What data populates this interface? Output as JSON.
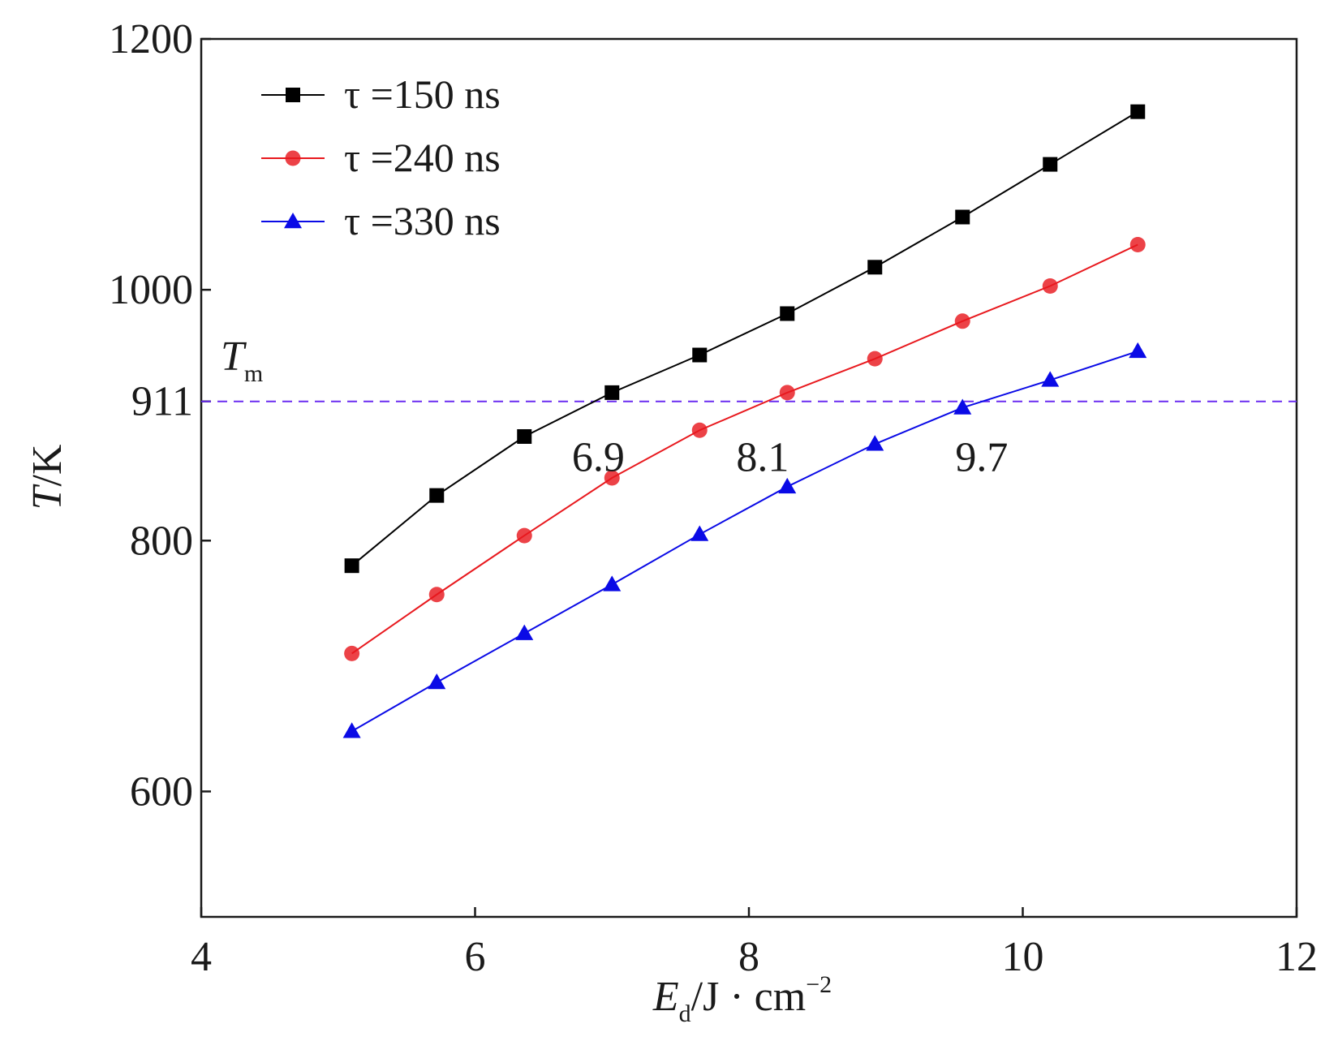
{
  "chart_data": {
    "type": "line",
    "xlabel": {
      "main": "E",
      "sub": "d",
      "rest": "/J · cm",
      "sup": "−2"
    },
    "ylabel": {
      "italic": "T",
      "rest": "/K"
    },
    "xlim": [
      4,
      12
    ],
    "ylim": [
      500,
      1200
    ],
    "xticks": [
      4,
      6,
      8,
      10,
      12
    ],
    "xtick_labels": [
      "4",
      "6",
      "8",
      "10",
      "12"
    ],
    "yticks": [
      600,
      800,
      911,
      1000,
      1200
    ],
    "ytick_labels": [
      "600",
      "800",
      "911",
      "1000",
      "1200"
    ],
    "grid": false,
    "legend_position": "top-left",
    "reference_line": {
      "y": 911,
      "label_main": "T",
      "label_sub": "m",
      "color": "#6a2cf0",
      "style": "dashed"
    },
    "annotations": [
      {
        "text": "6.9",
        "x": 6.9,
        "y": 875
      },
      {
        "text": "8.1",
        "x": 8.1,
        "y": 875
      },
      {
        "text": "9.7",
        "x": 9.7,
        "y": 875
      }
    ],
    "series": [
      {
        "name": "τ =150 ns",
        "color": "#000000",
        "marker": "square",
        "x": [
          5.1,
          5.72,
          6.36,
          7.0,
          7.64,
          8.28,
          8.92,
          9.56,
          10.2,
          10.84
        ],
        "y": [
          780,
          836,
          883,
          918,
          948,
          981,
          1018,
          1058,
          1100,
          1142
        ]
      },
      {
        "name": "τ =240 ns",
        "color": "#e8191e",
        "marker": "circle",
        "x": [
          5.1,
          5.72,
          6.36,
          7.0,
          7.64,
          8.28,
          8.92,
          9.56,
          10.2,
          10.84
        ],
        "y": [
          710,
          757,
          804,
          850,
          888,
          918,
          945,
          975,
          1003,
          1036
        ]
      },
      {
        "name": "τ =330 ns",
        "color": "#0a0ae6",
        "marker": "triangle",
        "x": [
          5.1,
          5.72,
          6.36,
          7.0,
          7.64,
          8.28,
          8.92,
          9.56,
          10.2,
          10.84
        ],
        "y": [
          648,
          687,
          726,
          765,
          805,
          843,
          877,
          906,
          928,
          951
        ]
      }
    ]
  }
}
